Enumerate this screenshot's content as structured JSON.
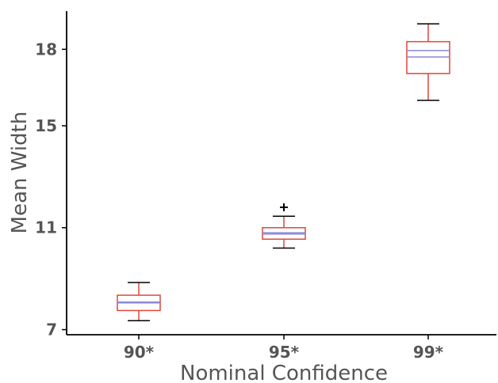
{
  "chart_data": {
    "type": "box",
    "xlabel": "Nominal Confidence",
    "ylabel": "Mean Width",
    "categories": [
      "90*",
      "95*",
      "99*"
    ],
    "y_ticks": [
      7,
      11,
      15,
      18
    ],
    "ylim": [
      6.8,
      19.5
    ],
    "boxes": [
      {
        "category": "90*",
        "whisker_low": 7.35,
        "q1": 7.75,
        "median": 8.05,
        "mean": 8.08,
        "q3": 8.35,
        "whisker_high": 8.85,
        "outliers": []
      },
      {
        "category": "95*",
        "whisker_low": 10.2,
        "q1": 10.55,
        "median": 10.75,
        "mean": 10.8,
        "q3": 11.0,
        "whisker_high": 11.45,
        "outliers": [
          11.8
        ]
      },
      {
        "category": "99*",
        "whisker_low": 16.0,
        "q1": 17.05,
        "median": 17.7,
        "mean": 17.95,
        "q3": 18.3,
        "whisker_high": 19.0,
        "outliers": []
      }
    ],
    "colors": {
      "box": "#e0473a",
      "median": "#8a88d4",
      "whisker_cap": "#000000",
      "axis": "#000000",
      "text": "#555555"
    }
  }
}
